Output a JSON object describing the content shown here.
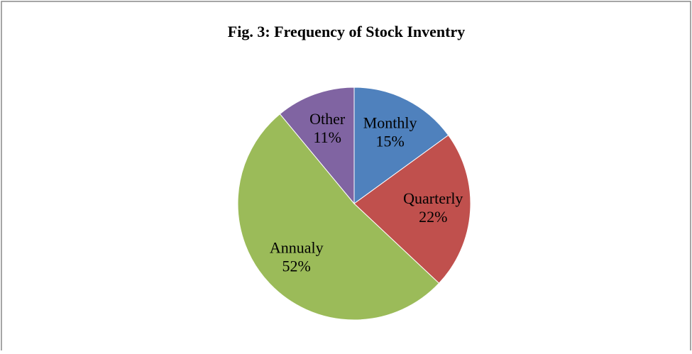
{
  "chart_data": {
    "type": "pie",
    "title": "Fig. 3: Frequency of Stock Inventry",
    "categories": [
      "Monthly",
      "Quarterly",
      "Annualy",
      "Other"
    ],
    "values": [
      15,
      22,
      52,
      11
    ],
    "value_labels": [
      "15%",
      "22%",
      "52%",
      "11%"
    ],
    "colors": [
      "#4f81bd",
      "#c0504d",
      "#9bbb59",
      "#8064a2"
    ]
  }
}
